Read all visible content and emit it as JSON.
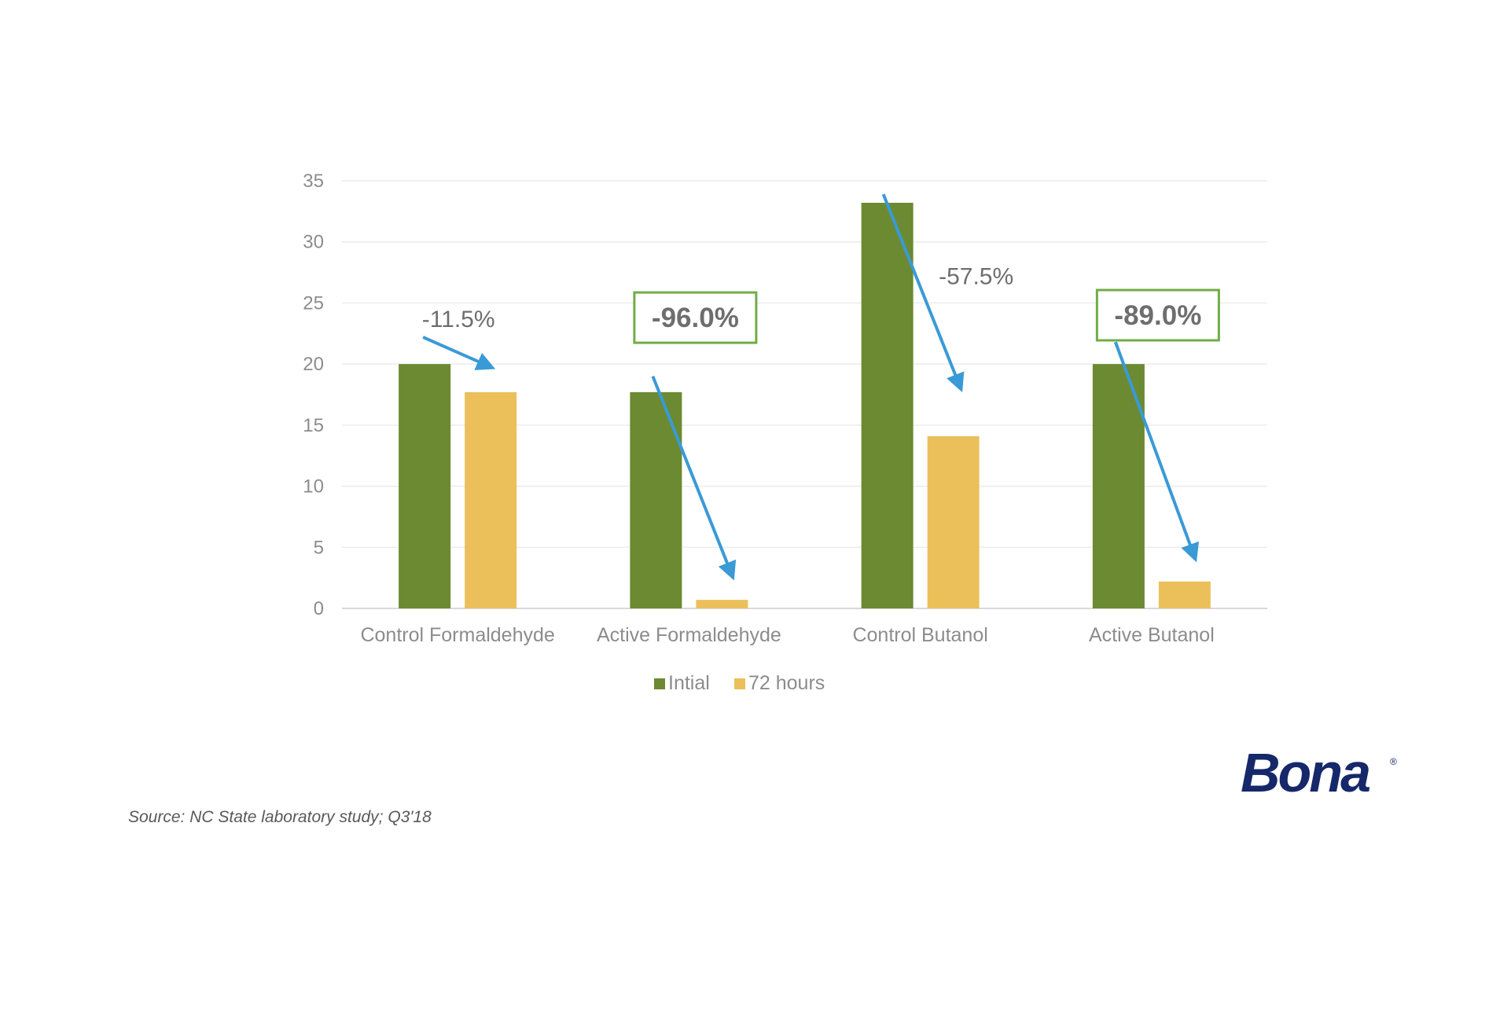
{
  "chart_data": {
    "type": "bar",
    "categories": [
      "Control Formaldehyde",
      "Active Formaldehyde",
      "Control Butanol",
      "Active Butanol"
    ],
    "series": [
      {
        "name": "Intial",
        "color": "#6b8a31",
        "values": [
          20,
          17.7,
          33.2,
          20
        ]
      },
      {
        "name": "72 hours",
        "color": "#ebc05b",
        "values": [
          17.7,
          0.7,
          14.1,
          2.2
        ]
      }
    ],
    "ylim": [
      0,
      35
    ],
    "yticks": [
      0,
      5,
      10,
      15,
      20,
      25,
      30,
      35
    ],
    "grid": true,
    "legend": "bottom",
    "annotations": [
      {
        "category": "Control Formaldehyde",
        "text": "-11.5%",
        "boxed": false
      },
      {
        "category": "Active Formaldehyde",
        "text": "-96.0%",
        "boxed": true
      },
      {
        "category": "Control Butanol",
        "text": "-57.5%",
        "boxed": false
      },
      {
        "category": "Active Butanol",
        "text": "-89.0%",
        "boxed": true
      }
    ],
    "arrow_color": "#3a9ad6",
    "box_color": "#70ad47"
  },
  "source": "Source: NC State laboratory study; Q3'18",
  "logo": "Bona",
  "logo_mark": "®"
}
